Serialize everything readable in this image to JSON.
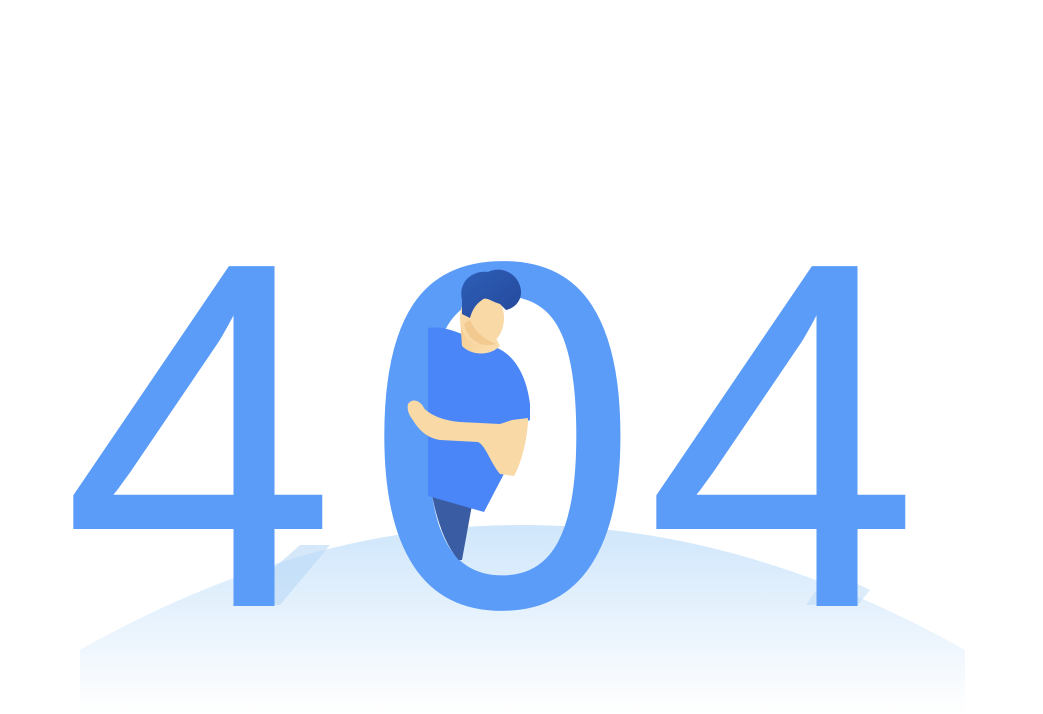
{
  "error_code": {
    "digit_1": "4",
    "digit_2": "0",
    "digit_3": "4"
  },
  "illustration": {
    "name": "person-peeking-through-zero",
    "colors": {
      "digits": "#5a9cf8",
      "shirt": "#4a86f7",
      "hair": "#2f5db0",
      "skin": "#f8d6a0",
      "skin_shadow": "#f0b774",
      "pants": "#3a5ca3",
      "ground_top": "#cfe6fb",
      "ground_bottom": "#ffffff"
    }
  }
}
